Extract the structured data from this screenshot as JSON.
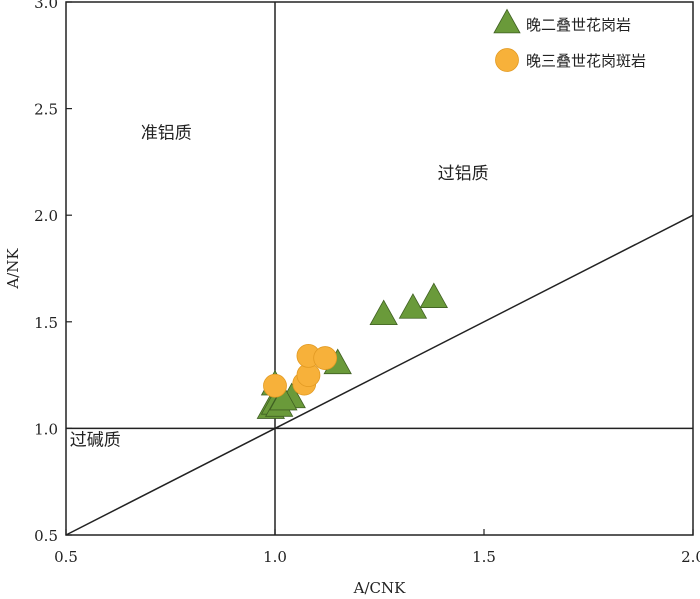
{
  "chart_data": {
    "type": "scatter",
    "xlabel": "A/CNK",
    "ylabel": "A/NK",
    "xlim": [
      0.5,
      2.0
    ],
    "ylim": [
      0.5,
      3.0
    ],
    "x_ticks": [
      "0.5",
      "1.0",
      "1.5",
      "2.0"
    ],
    "y_ticks": [
      "0.5",
      "1.0",
      "1.5",
      "2.0",
      "2.5",
      "3.0"
    ],
    "grid": false,
    "legend_position": "top-right",
    "reference_lines": [
      {
        "type": "vertical",
        "x": 1.0
      },
      {
        "type": "horizontal",
        "y": 1.0
      },
      {
        "type": "segment",
        "from": [
          0.5,
          0.5
        ],
        "to": [
          2.0,
          2.0
        ]
      }
    ],
    "region_labels": [
      {
        "text": "准铝质",
        "x": 0.74,
        "y": 2.36
      },
      {
        "text": "过铝质",
        "x": 1.45,
        "y": 2.17
      },
      {
        "text": "过碱质",
        "x": 0.57,
        "y": 0.92
      }
    ],
    "series": [
      {
        "name": "晚二叠世花岗岩",
        "marker": "triangle",
        "color": "#6a9a3a",
        "points": [
          [
            0.99,
            1.09
          ],
          [
            1.0,
            1.11
          ],
          [
            1.01,
            1.1
          ],
          [
            1.0,
            1.2
          ],
          [
            1.04,
            1.14
          ],
          [
            1.02,
            1.13
          ],
          [
            1.15,
            1.3
          ],
          [
            1.26,
            1.53
          ],
          [
            1.33,
            1.56
          ],
          [
            1.38,
            1.61
          ]
        ]
      },
      {
        "name": "晚三叠世花岗斑岩",
        "marker": "circle",
        "color": "#f7b13a",
        "points": [
          [
            1.0,
            1.2
          ],
          [
            1.07,
            1.21
          ],
          [
            1.08,
            1.25
          ],
          [
            1.08,
            1.34
          ],
          [
            1.12,
            1.33
          ]
        ]
      }
    ]
  }
}
